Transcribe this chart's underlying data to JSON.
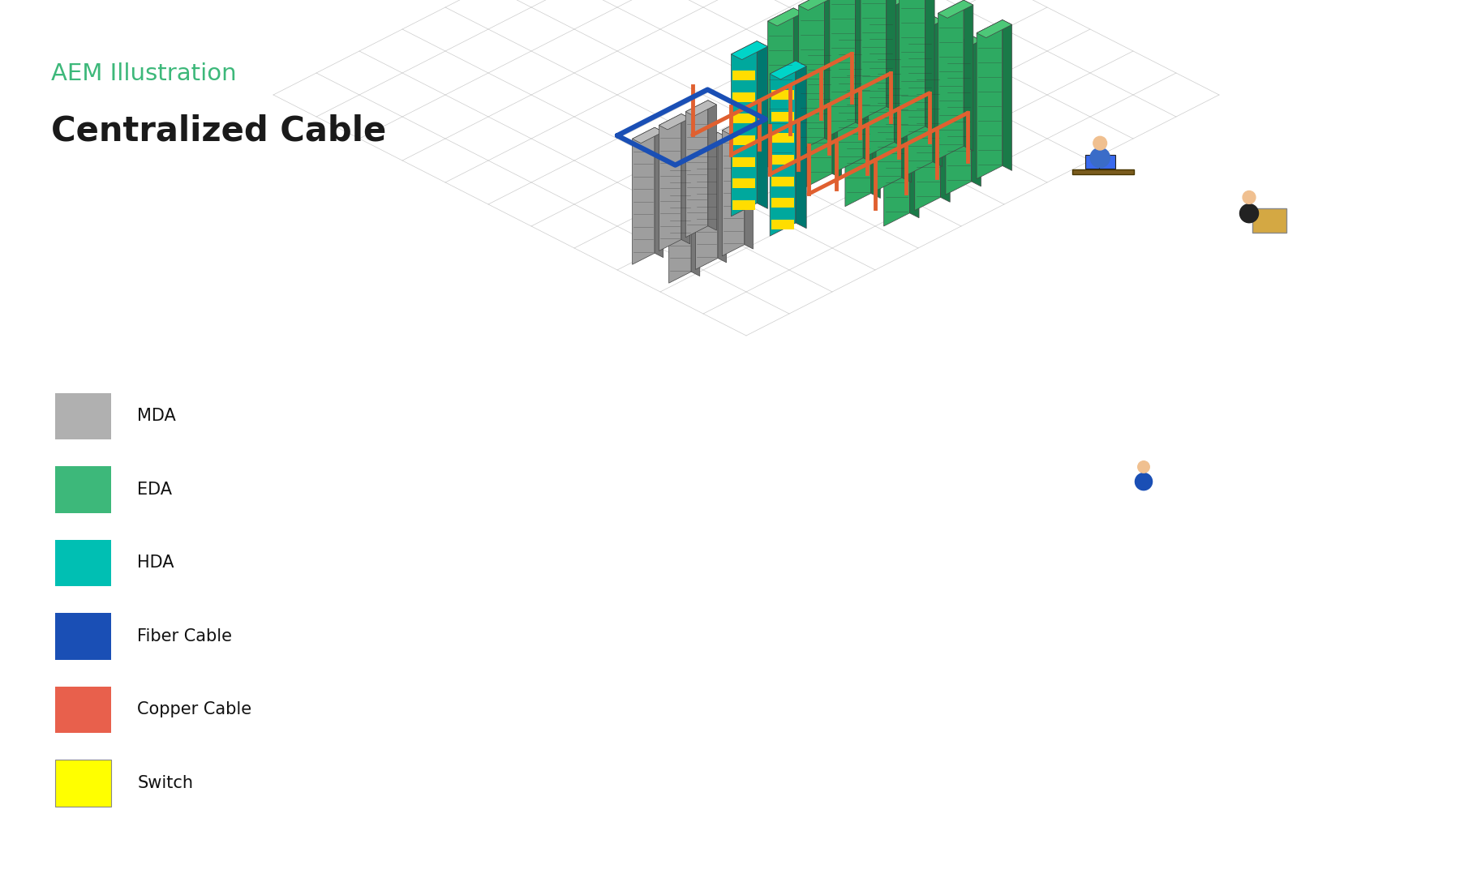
{
  "title_sub": "AEM Illustration",
  "title_main": "Centralized Cable",
  "title_sub_color": "#3db87a",
  "title_main_color": "#1a1a1a",
  "background_color": "#ffffff",
  "legend_items": [
    {
      "label": "MDA",
      "color": "#b0b0b0"
    },
    {
      "label": "EDA",
      "color": "#3db87a"
    },
    {
      "label": "HDA",
      "color": "#00bfb3"
    },
    {
      "label": "Fiber Cable",
      "color": "#1a4fb5"
    },
    {
      "label": "Copper Cable",
      "color": "#e8604c"
    },
    {
      "label": "Switch",
      "color": "#ffff00"
    }
  ],
  "grid_color": "#cccccc",
  "fiber_color": "#1a4fb5",
  "copper_color": "#e06030",
  "mda_face": "#9e9e9e",
  "mda_top": "#bbbbbb",
  "mda_side": "#777777",
  "eda_face": "#2eaa62",
  "eda_top": "#4dc878",
  "eda_side": "#1a7a48",
  "hda_face": "#00a89d",
  "hda_top": "#00d4c8",
  "hda_side": "#007870"
}
